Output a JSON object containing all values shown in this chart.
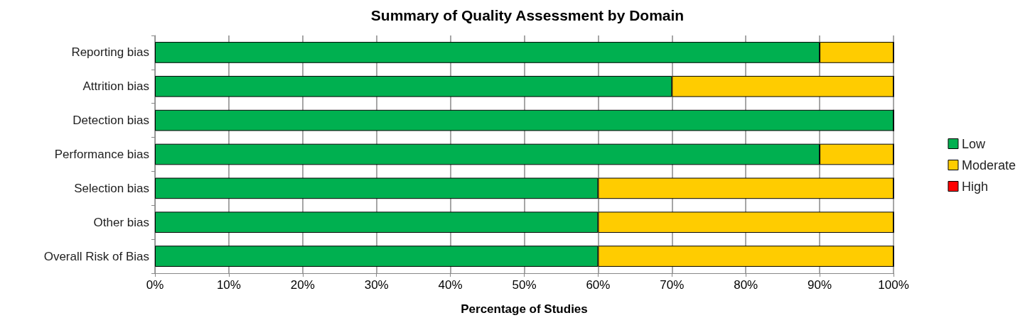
{
  "chart_data": {
    "type": "bar",
    "orientation": "horizontal",
    "stacked": true,
    "title": "Summary of Quality Assessment by Domain",
    "xlabel": "Percentage of Studies",
    "categories": [
      "Reporting bias",
      "Attrition bias",
      "Detection bias",
      "Performance bias",
      "Selection bias",
      "Other bias",
      "Overall Risk of Bias"
    ],
    "series": [
      {
        "name": "Low",
        "color": "#00b050",
        "values": [
          90,
          70,
          100,
          90,
          60,
          60,
          60
        ]
      },
      {
        "name": "Moderate",
        "color": "#ffcc00",
        "values": [
          10,
          30,
          0,
          10,
          40,
          40,
          40
        ]
      },
      {
        "name": "High",
        "color": "#ff0000",
        "values": [
          0,
          0,
          0,
          0,
          0,
          0,
          0
        ]
      }
    ],
    "xlim": [
      0,
      100
    ],
    "xticks": [
      {
        "value": 0,
        "label": "0%"
      },
      {
        "value": 10,
        "label": "10%"
      },
      {
        "value": 20,
        "label": "20%"
      },
      {
        "value": 30,
        "label": "30%"
      },
      {
        "value": 40,
        "label": "40%"
      },
      {
        "value": 50,
        "label": "50%"
      },
      {
        "value": 60,
        "label": "60%"
      },
      {
        "value": 70,
        "label": "70%"
      },
      {
        "value": 80,
        "label": "80%"
      },
      {
        "value": 90,
        "label": "90%"
      },
      {
        "value": 100,
        "label": "100%"
      }
    ],
    "grid": "x",
    "legend": "right"
  }
}
